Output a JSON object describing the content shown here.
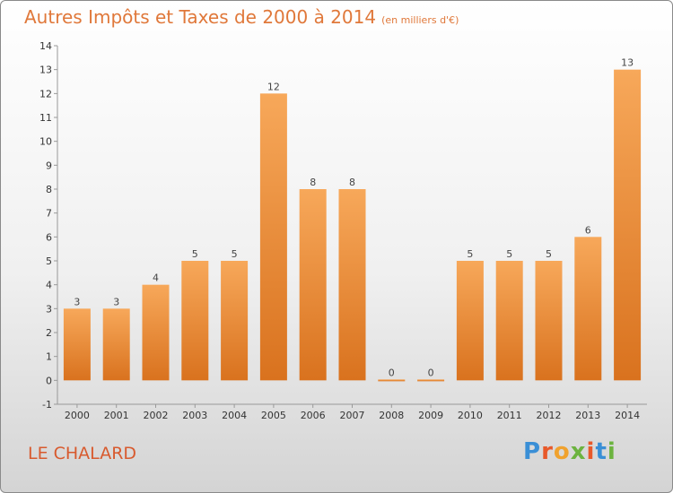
{
  "header": {
    "title": "Autres Impôts et Taxes de 2000 à 2014",
    "subtitle": "(en milliers d'€)"
  },
  "footer": {
    "commune": "LE CHALARD",
    "logo": "Proxiti"
  },
  "colors": {
    "bar_top": "#f7a85a",
    "bar_bottom": "#d9721e",
    "title": "#e0783a",
    "commune": "#d85a2e"
  },
  "chart_data": {
    "type": "bar",
    "title": "Autres Impôts et Taxes de 2000 à 2014",
    "subtitle": "(en milliers d'€)",
    "categories": [
      "2000",
      "2001",
      "2002",
      "2003",
      "2004",
      "2005",
      "2006",
      "2007",
      "2008",
      "2009",
      "2010",
      "2011",
      "2012",
      "2013",
      "2014"
    ],
    "values": [
      3,
      3,
      4,
      5,
      5,
      12,
      8,
      8,
      0,
      0,
      5,
      5,
      5,
      6,
      13
    ],
    "data_labels": [
      "3",
      "3",
      "4",
      "5",
      "5",
      "12",
      "8",
      "8",
      "0",
      "0",
      "5",
      "5",
      "5",
      "6",
      "13"
    ],
    "ylim": [
      -1,
      14
    ],
    "yticks": [
      -1,
      0,
      1,
      2,
      3,
      4,
      5,
      6,
      7,
      8,
      9,
      10,
      11,
      12,
      13,
      14
    ],
    "ytick_labels": [
      "-1",
      "0",
      "1",
      "2",
      "3",
      "4",
      "5",
      "6",
      "7",
      "8",
      "9",
      "10",
      "11",
      "12",
      "13",
      "14"
    ],
    "grid": false,
    "legend": "none"
  }
}
